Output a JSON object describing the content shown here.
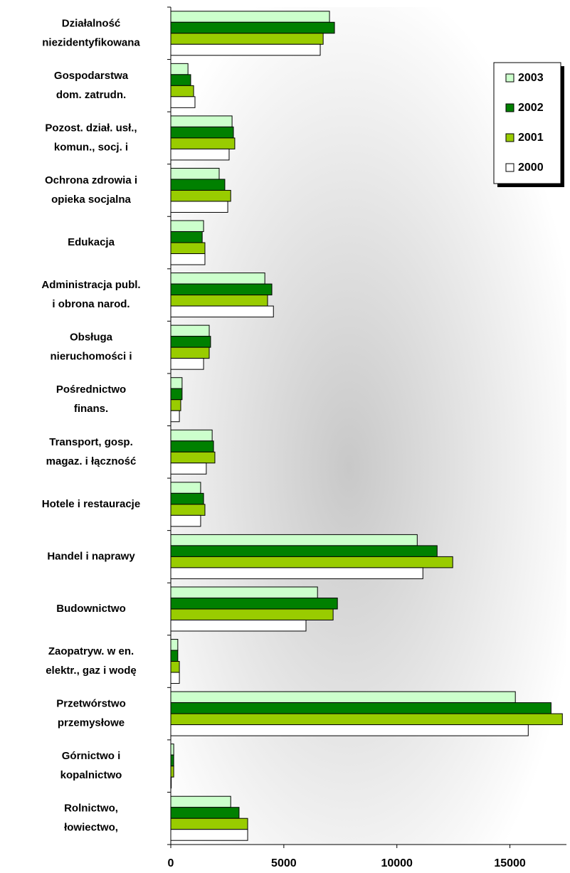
{
  "chart_data": {
    "type": "bar",
    "orientation": "horizontal",
    "categories": [
      [
        "Działalność",
        "niezidentyfikowana"
      ],
      [
        "Gospodarstwa",
        "dom. zatrudn."
      ],
      [
        "Pozost. dział. usł.,",
        "komun., socj. i"
      ],
      [
        "Ochrona zdrowia i",
        "opieka socjalna"
      ],
      [
        "Edukacja"
      ],
      [
        "Administracja publ.",
        "i obrona narod."
      ],
      [
        "Obsługa",
        "nieruchomości i"
      ],
      [
        "Pośrednictwo",
        "finans."
      ],
      [
        "Transport, gosp.",
        "magaz. i łączność"
      ],
      [
        "Hotele i restauracje"
      ],
      [
        "Handel i naprawy"
      ],
      [
        "Budownictwo"
      ],
      [
        "Zaopatryw. w en.",
        "elektr., gaz i wodę"
      ],
      [
        "Przetwórstwo",
        "przemysłowe"
      ],
      [
        "Górnictwo i",
        "kopalnictwo"
      ],
      [
        "Rolnictwo,",
        "łowiectwo,"
      ]
    ],
    "series": [
      {
        "name": "2003",
        "color": "#ccffcc",
        "values": [
          7020,
          760,
          2710,
          2140,
          1450,
          4160,
          1700,
          500,
          1830,
          1320,
          10900,
          6490,
          310,
          15240,
          130,
          2650
        ]
      },
      {
        "name": "2002",
        "color": "#008000",
        "values": [
          7240,
          880,
          2770,
          2390,
          1390,
          4470,
          1760,
          500,
          1890,
          1450,
          11780,
          7370,
          310,
          16820,
          130,
          3020
        ]
      },
      {
        "name": "2001",
        "color": "#99cc00",
        "values": [
          6740,
          1010,
          2830,
          2650,
          1510,
          4280,
          1700,
          440,
          1950,
          1510,
          12470,
          7180,
          380,
          17320,
          130,
          3400
        ]
      },
      {
        "name": "2000",
        "color": "#ffffff",
        "values": [
          6610,
          1070,
          2580,
          2520,
          1510,
          4540,
          1450,
          380,
          1570,
          1320,
          11150,
          5980,
          380,
          15810,
          20,
          3400
        ]
      }
    ],
    "xlim": [
      0,
      17500
    ],
    "xticks": [
      0,
      5000,
      10000,
      15000
    ],
    "legend": "upper right"
  }
}
